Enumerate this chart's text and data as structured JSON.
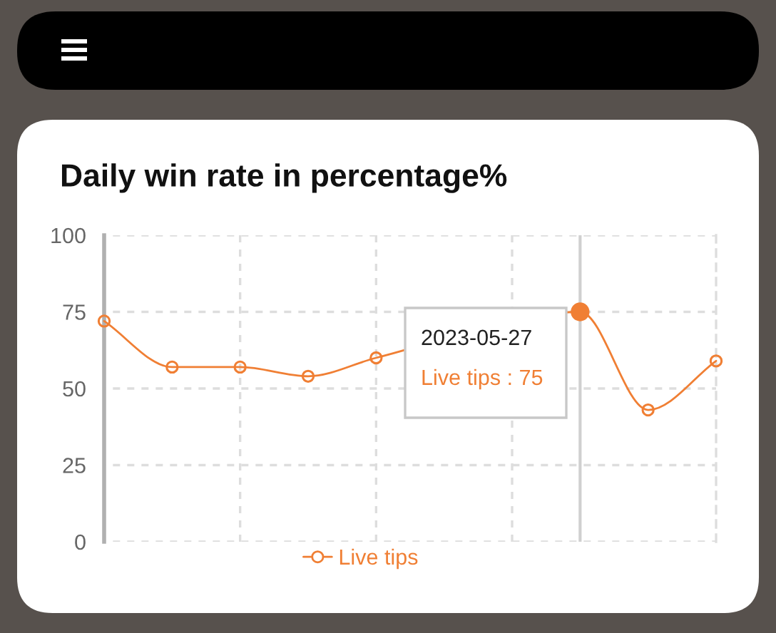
{
  "chart_data": {
    "type": "line",
    "title": "Daily win rate in percentage%",
    "categories": [
      null,
      null,
      null,
      null,
      null,
      null,
      null,
      null,
      null,
      null
    ],
    "series": [
      {
        "name": "Live tips",
        "color": "#f07f34",
        "values": [
          72,
          57,
          57,
          54,
          60,
          null,
          null,
          75,
          43,
          59
        ]
      },
      {
        "type": "scatter",
        "color": "#f07f34",
        "values": [
          null,
          null,
          null,
          null,
          null,
          null,
          null,
          75,
          null,
          null
        ]
      }
    ],
    "ylim": [
      0,
      100
    ],
    "yticks": [
      0,
      25,
      50,
      75,
      100
    ],
    "grid": true,
    "legend": "bottom",
    "marker": "circle",
    "tick_labels": "y",
    "annotations": [
      "2023-05-27",
      "Live tips : 75"
    ]
  }
}
